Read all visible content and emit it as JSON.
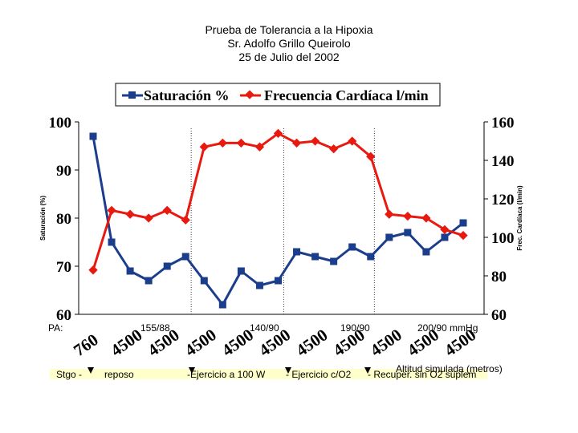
{
  "title_lines": [
    "Prueba de Tolerancia a la Hipoxia",
    "Sr. Adolfo Grillo Queirolo",
    "25 de Julio del 2002"
  ],
  "chart_data": {
    "type": "line",
    "title": "Prueba de Tolerancia a la Hipoxia",
    "categories": [
      "760",
      "4500",
      "4500",
      "4500",
      "4500",
      "4500",
      "4500",
      "4500",
      "4500",
      "4500",
      "4500",
      "4500",
      "4500",
      "4500",
      "4500",
      "4500",
      "4500",
      "4500",
      "4500",
      "4500",
      "4500"
    ],
    "ylabel": "Saturación (%)",
    "y2label": "Frec. Cardíaca (l/min)",
    "ylim": [
      60,
      100
    ],
    "y2lim": [
      60,
      160
    ],
    "yticks": [
      "100",
      "90",
      "80",
      "70",
      "60"
    ],
    "y2ticks": [
      "160",
      "140",
      "120",
      "100",
      "80",
      "60"
    ],
    "grid": false,
    "legend_position": "top",
    "series": [
      {
        "name": "Saturación %",
        "axis": "left",
        "color": "#1a3d8c",
        "marker": "square",
        "values": [
          97,
          75,
          69,
          67,
          70,
          72,
          67,
          62,
          69,
          66,
          67,
          73,
          72,
          71,
          74,
          72,
          76,
          77,
          73,
          76,
          79
        ]
      },
      {
        "name": "Frecuencia Cardíaca l/min",
        "axis": "right",
        "color": "#e8190f",
        "marker": "diamond",
        "values": [
          83,
          114,
          112,
          110,
          114,
          109,
          147,
          149,
          149,
          147,
          154,
          149,
          150,
          146,
          150,
          142,
          112,
          111,
          110,
          104,
          101
        ]
      }
    ]
  },
  "x_category_labels_shown": [
    "760",
    "4500",
    "4500",
    "4500",
    "4500",
    "4500",
    "4500",
    "4500",
    "4500",
    "4500",
    "4500"
  ],
  "pa_label": "PA:",
  "bp_labels": [
    "155/88",
    "140/90",
    "190/90",
    "200/90 mmHg"
  ],
  "altitude_label": "Altitud simulada (metros)",
  "phase_labels": [
    "Stgo -",
    "reposo",
    "-Ejercicio a 100 W",
    "- Ejercicio c/O2",
    "- Recuper. sin O2 suplem"
  ],
  "colors": {
    "saturation": "#1a3d8c",
    "heart_rate": "#e8190f",
    "phase_bar": "#ffffcc",
    "marker_arrow": "#000000"
  }
}
